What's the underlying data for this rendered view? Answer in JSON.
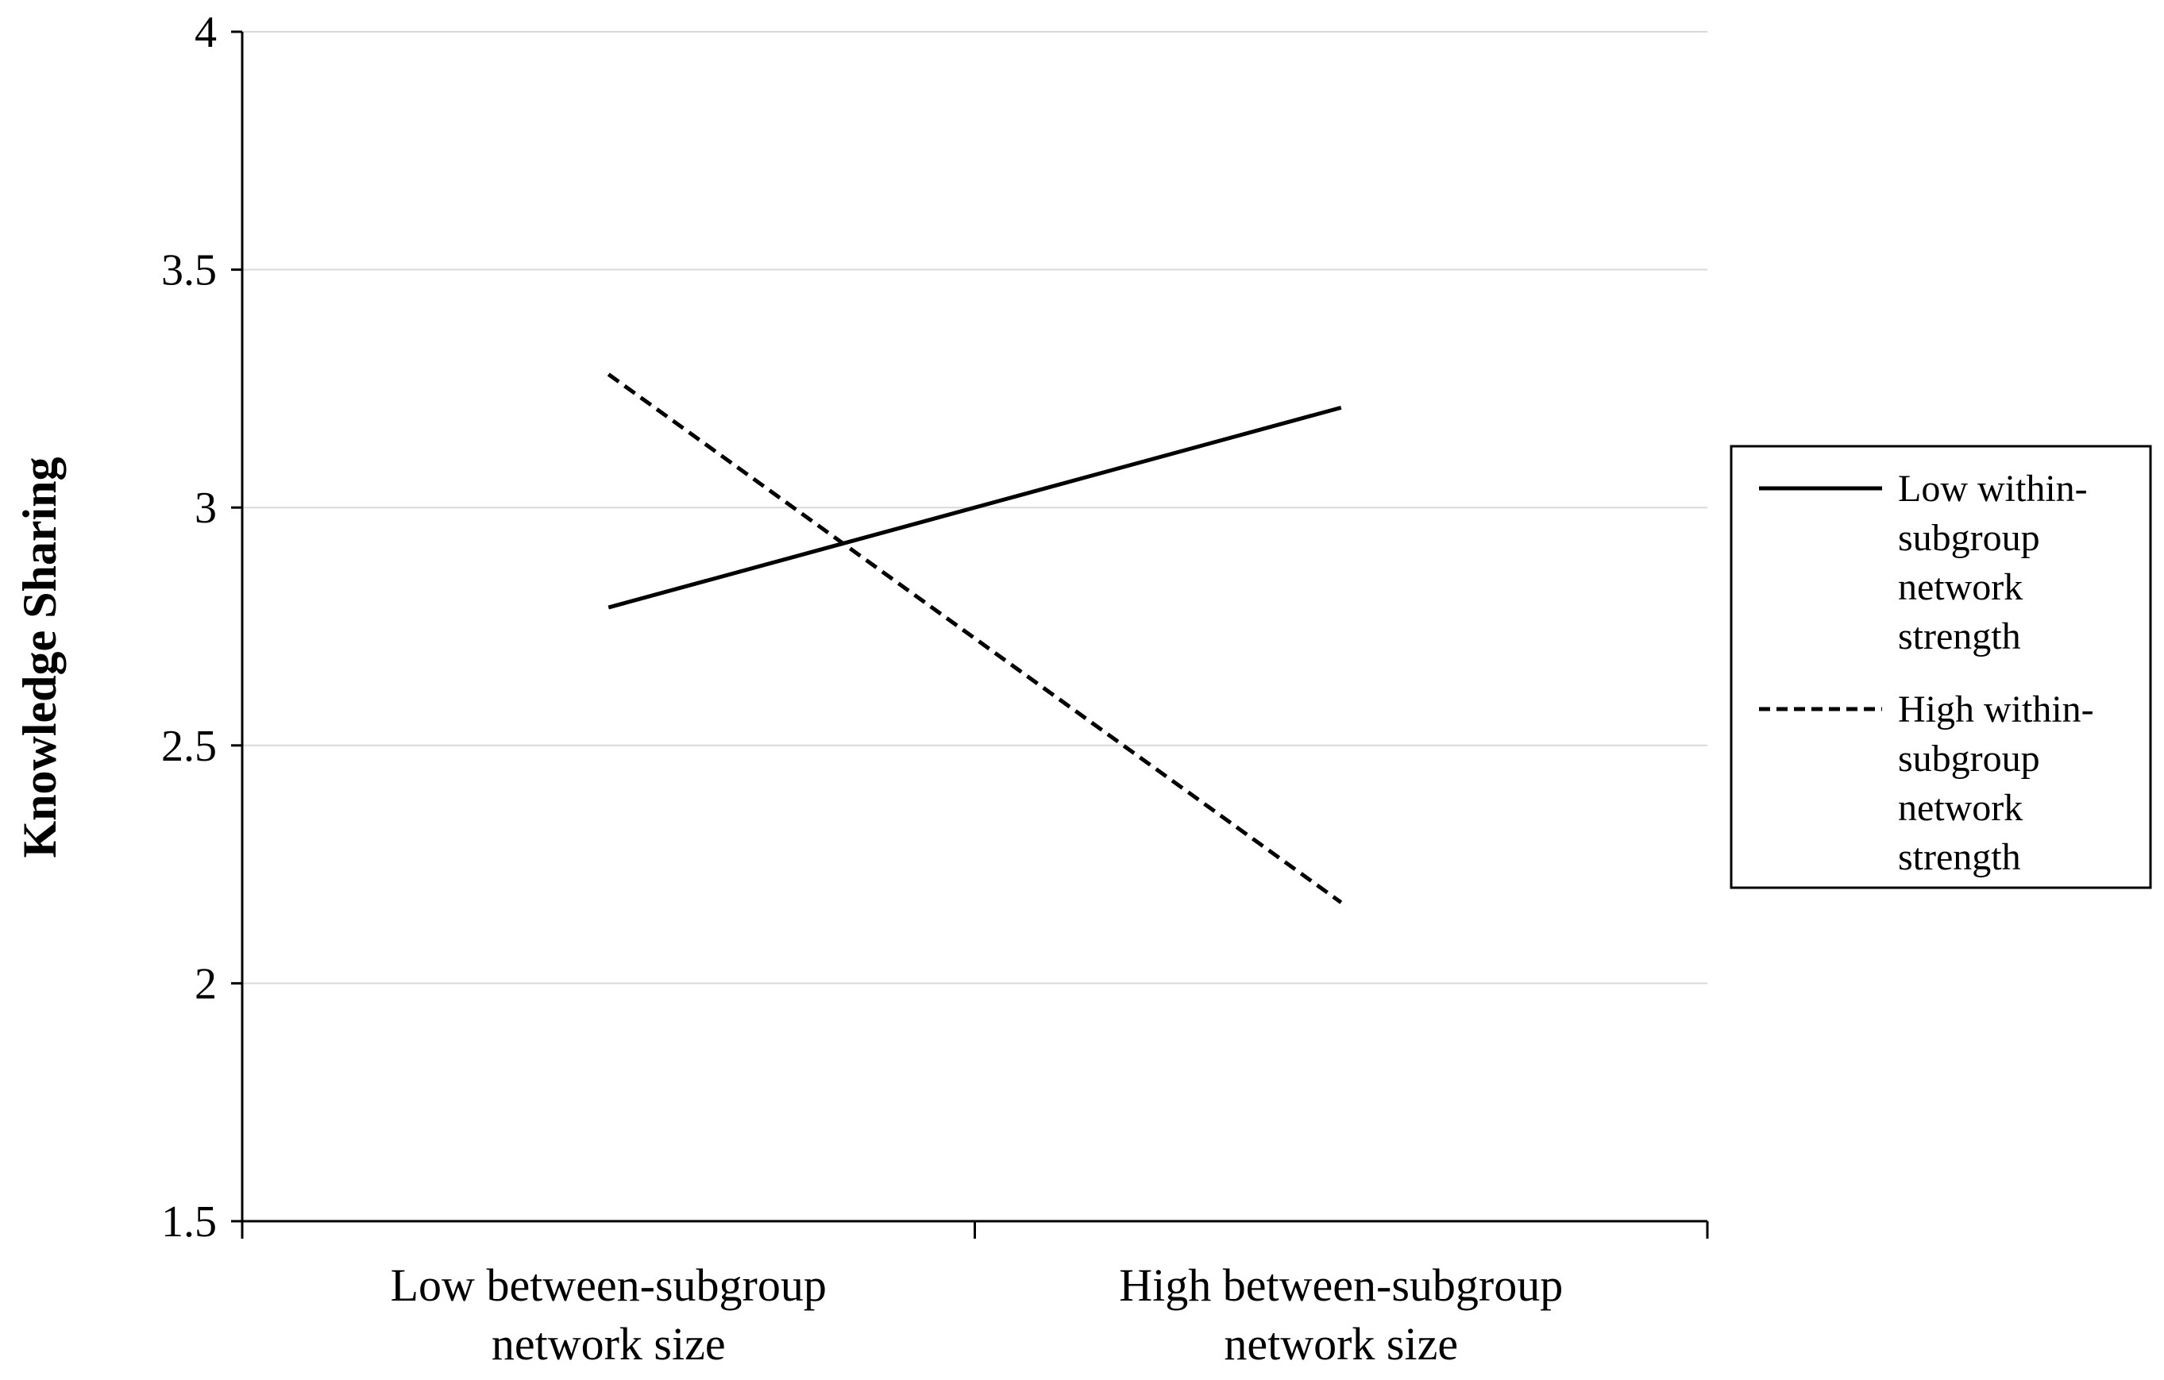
{
  "chart_data": {
    "type": "line",
    "title": "",
    "xlabel": "",
    "ylabel": "Knowledge Sharing",
    "ylim": [
      1.5,
      4
    ],
    "yticks": [
      "1.5",
      "2",
      "2.5",
      "3",
      "3.5",
      "4"
    ],
    "grid": true,
    "legend_position": "right",
    "categories": [
      [
        "Low between-subgroup",
        "network size"
      ],
      [
        "High between-subgroup",
        "network size"
      ]
    ],
    "series": [
      {
        "name": "Low within-subgroup network strength",
        "name_lines": [
          "Low within-",
          "subgroup",
          "network",
          "strength"
        ],
        "style": "solid",
        "color": "#000000",
        "values": [
          2.79,
          3.21
        ]
      },
      {
        "name": "High within-subgroup network strength",
        "name_lines": [
          "High within-",
          "subgroup",
          "network",
          "strength"
        ],
        "style": "dashed",
        "color": "#000000",
        "values": [
          3.28,
          2.17
        ]
      }
    ]
  }
}
